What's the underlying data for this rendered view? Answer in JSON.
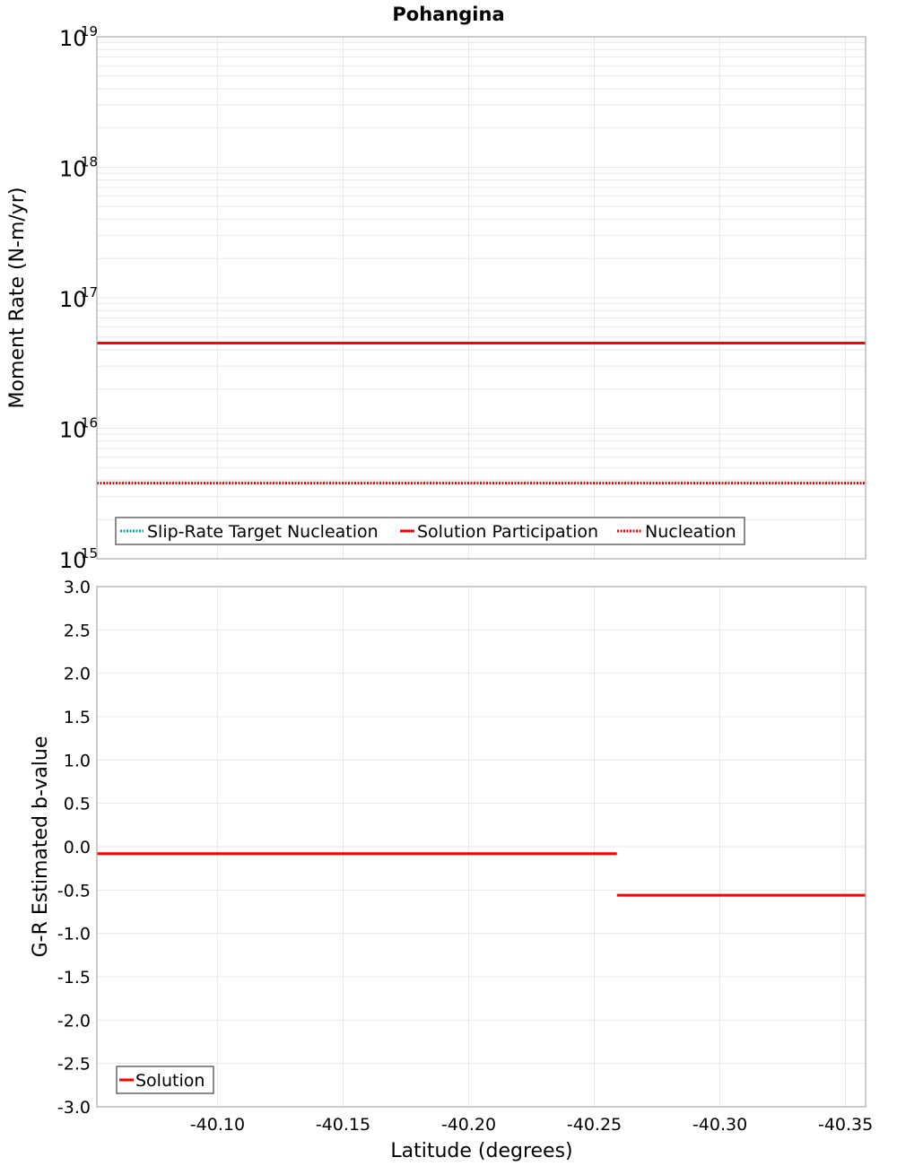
{
  "chart_data": [
    {
      "type": "line",
      "title": "Pohangina",
      "xlabel": "Latitude (degrees)",
      "ylabel": "Moment Rate (N-m/yr)",
      "yscale": "log",
      "ylim": [
        1000000000000000.0,
        1e+19
      ],
      "xlim": [
        -40.052,
        -40.358
      ],
      "y_ticks": [
        {
          "base": "10",
          "exp": "19",
          "value": 1e+19
        },
        {
          "base": "10",
          "exp": "18",
          "value": 1e+18
        },
        {
          "base": "10",
          "exp": "17",
          "value": 1e+17
        },
        {
          "base": "10",
          "exp": "16",
          "value": 1e+16
        },
        {
          "base": "10",
          "exp": "15",
          "value": 1000000000000000.0
        }
      ],
      "grid": true,
      "legend_position": "bottom-left",
      "legend": [
        {
          "label": "Slip-Rate Target Nucleation",
          "color": "#00aaaa",
          "style": "dotted"
        },
        {
          "label": "Solution Participation",
          "color": "#ff0000",
          "style": "solid"
        },
        {
          "label": "Nucleation",
          "color": "#ff0000",
          "style": "dotted"
        }
      ],
      "series": [
        {
          "name": "Slip-Rate Target Nucleation",
          "color": "#00aaaa",
          "style": "dotted",
          "x": [
            -40.052,
            -40.259,
            -40.358
          ],
          "values": [
            3800000000000000.0,
            3800000000000000.0,
            3800000000000000.0
          ]
        },
        {
          "name": "Solution Participation",
          "color": "#ff0000",
          "style": "solid",
          "x": [
            -40.052,
            -40.259,
            -40.358
          ],
          "values": [
            4.5e+16,
            4.5e+16,
            4.5e+16
          ]
        },
        {
          "name": "Nucleation",
          "color": "#ff0000",
          "style": "dotted",
          "x": [
            -40.052,
            -40.259,
            -40.358
          ],
          "values": [
            3800000000000000.0,
            3800000000000000.0,
            3800000000000000.0
          ]
        }
      ]
    },
    {
      "type": "line",
      "title": "",
      "xlabel": "Latitude (degrees)",
      "ylabel": "G-R Estimated b-value",
      "ylim": [
        -3.0,
        3.0
      ],
      "xlim": [
        -40.052,
        -40.358
      ],
      "y_ticks": [
        "3.0",
        "2.5",
        "2.0",
        "1.5",
        "1.0",
        "0.5",
        "0.0",
        "-0.5",
        "-1.0",
        "-1.5",
        "-2.0",
        "-2.5",
        "-3.0"
      ],
      "x_ticks": [
        "-40.10",
        "-40.15",
        "-40.20",
        "-40.25",
        "-40.30",
        "-40.35"
      ],
      "grid": true,
      "legend_position": "bottom-left",
      "legend": [
        {
          "label": "Solution",
          "color": "#ff0000",
          "style": "solid"
        }
      ],
      "series": [
        {
          "name": "Solution",
          "color": "#ff0000",
          "style": "solid",
          "segments": [
            {
              "x": [
                -40.052,
                -40.259
              ],
              "values": [
                -0.08,
                -0.08
              ]
            },
            {
              "x": [
                -40.259,
                -40.358
              ],
              "values": [
                -0.56,
                -0.56
              ]
            }
          ]
        }
      ]
    }
  ],
  "labels": {
    "title": "Pohangina",
    "top_ylabel": "Moment Rate (N-m/yr)",
    "bottom_ylabel": "G-R Estimated b-value",
    "xlabel": "Latitude (degrees)",
    "top_legend": [
      "Slip-Rate Target Nucleation",
      "Solution Participation",
      "Nucleation"
    ],
    "bottom_legend": [
      "Solution"
    ],
    "top_yticks": [
      {
        "base": "10",
        "exp": "19"
      },
      {
        "base": "10",
        "exp": "18"
      },
      {
        "base": "10",
        "exp": "17"
      },
      {
        "base": "10",
        "exp": "16"
      },
      {
        "base": "10",
        "exp": "15"
      }
    ],
    "bottom_yticks": [
      "3.0",
      "2.5",
      "2.0",
      "1.5",
      "1.0",
      "0.5",
      "0.0",
      "-0.5",
      "-1.0",
      "-1.5",
      "-2.0",
      "-2.5",
      "-3.0"
    ],
    "xticks": [
      "-40.10",
      "-40.15",
      "-40.20",
      "-40.25",
      "-40.30",
      "-40.35"
    ]
  },
  "colors": {
    "solution": "#ff0000",
    "target": "#00aaaa",
    "grid": "#e8e8e8",
    "frame": "#aaaaaa"
  }
}
